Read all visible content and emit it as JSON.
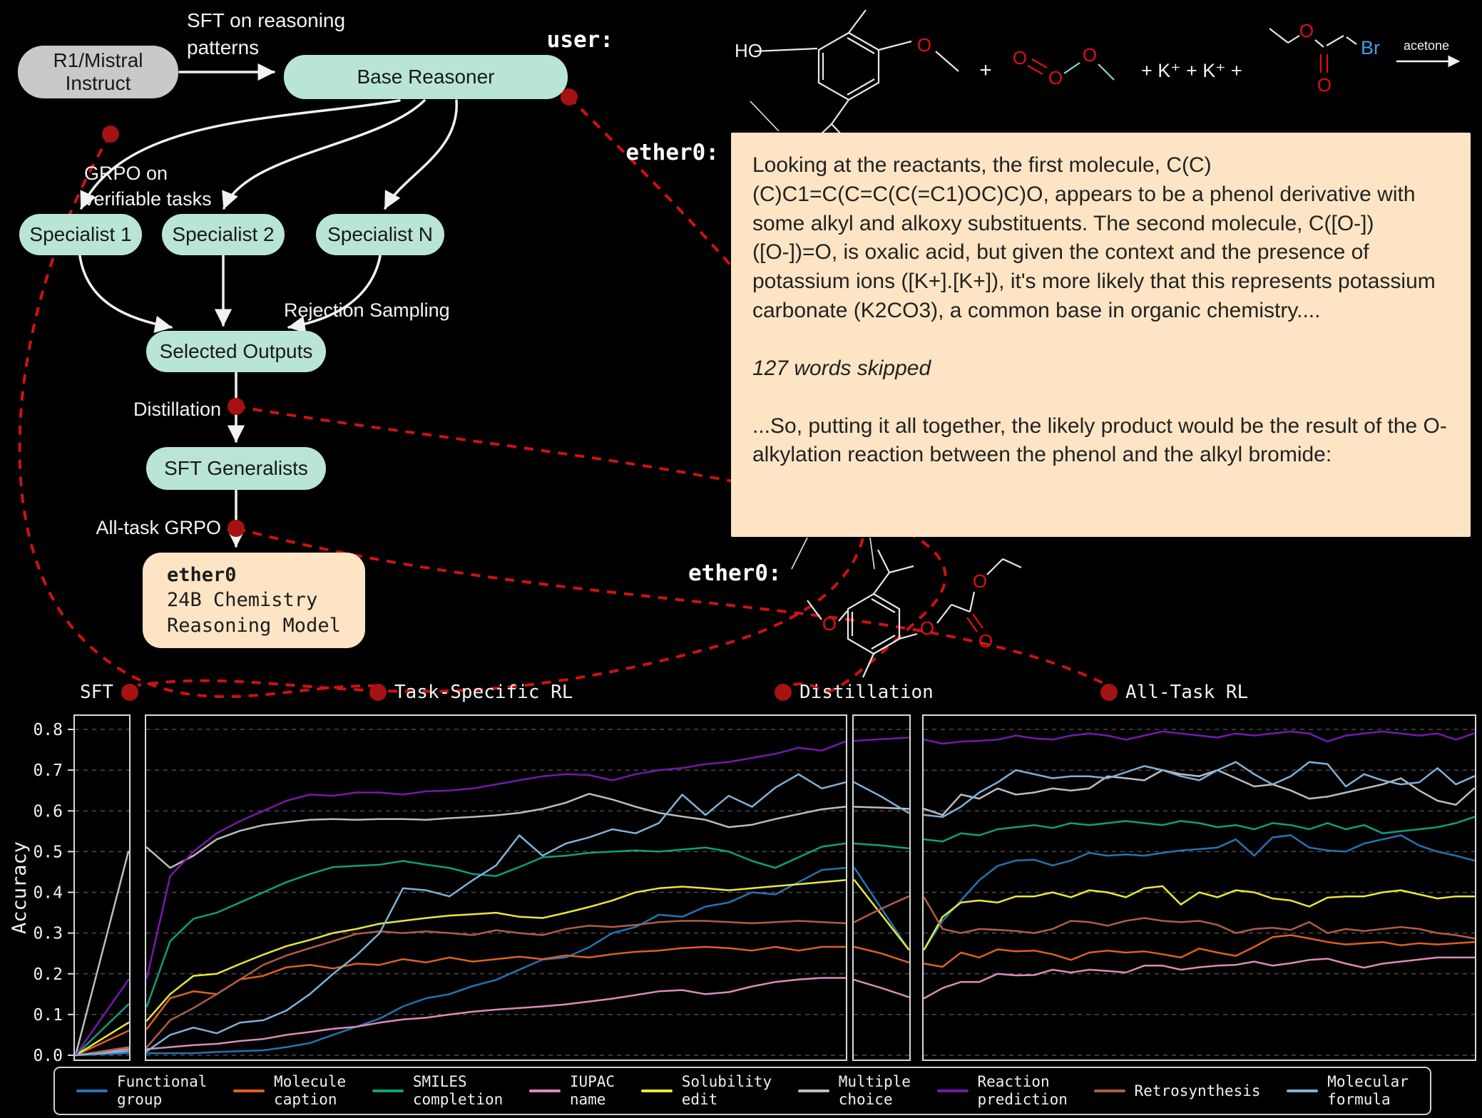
{
  "flow": {
    "sft_label_line1": "SFT on reasoning",
    "sft_label_line2": "patterns",
    "r1_box": "R1/Mistral Instruct",
    "base_box": "Base Reasoner",
    "grpo_label_line1": "GRPO on",
    "grpo_label_line2": "verifiable tasks",
    "specialist1": "Specialist 1",
    "specialist2": "Specialist 2",
    "specialistN": "Specialist N",
    "rejection_label": "Rejection Sampling",
    "selected_outputs": "Selected Outputs",
    "distillation_label": "Distillation",
    "sft_generalists": "SFT Generalists",
    "alltask_grpo_label": "All-task GRPO",
    "ether0_name": "ether0",
    "ether0_line2": "24B Chemistry",
    "ether0_line3": "Reasoning Model"
  },
  "chat": {
    "user_label": "user:",
    "ether0_label": "ether0:",
    "ether0_label2": "ether0:",
    "reaction": {
      "ho": "HO",
      "o": "O",
      "plus": "+",
      "k_ions": "+ K⁺ + K⁺ +",
      "br": "Br",
      "arrow_label": "acetone"
    },
    "response": {
      "para1": "Looking at the reactants, the first molecule, C(C)(C)C1=C(C=C(C(=C1)OC)C)O, appears to be a phenol derivative with some alkyl and alkoxy substituents. The second molecule, C([O-])([O-])=O, is oxalic acid, but given the context and the presence of potassium ions ([K+].[K+]), it's more likely that this represents potassium carbonate (K2CO3), a common base in organic chemistry....",
      "skipped": "127 words skipped",
      "para2": "...So, putting it all together, the likely product would be the result of the O-alkylation reaction between the phenol and the alkyl bromide:"
    }
  },
  "chart_data": {
    "type": "line",
    "title": "",
    "xlabel": "",
    "ylabel": "Accuracy",
    "ylim": [
      0.0,
      0.85
    ],
    "grid": "dashed horizontal",
    "legend_position": "bottom",
    "yticks": [
      "0.0",
      "0.1",
      "0.2",
      "0.3",
      "0.4",
      "0.5",
      "0.6",
      "0.7",
      "0.8"
    ],
    "panels": [
      {
        "key": "sft",
        "label": "SFT"
      },
      {
        "key": "task_rl",
        "label": "Task-Specific RL"
      },
      {
        "key": "distill",
        "label": "Distillation"
      },
      {
        "key": "all_rl",
        "label": "All-Task RL"
      }
    ],
    "series": [
      {
        "name": "Functional group",
        "legend": [
          "Functional",
          "group"
        ],
        "color": "#2474b5",
        "sft": [
          0,
          0.005
        ],
        "task_rl": [
          0.005,
          0.005,
          0.005,
          0.008,
          0.01,
          0.012,
          0.02,
          0.03,
          0.05,
          0.07,
          0.09,
          0.12,
          0.14,
          0.15,
          0.17,
          0.185,
          0.21,
          0.235,
          0.24,
          0.265,
          0.3,
          0.315,
          0.345,
          0.34,
          0.365,
          0.375,
          0.4,
          0.395,
          0.425,
          0.455,
          0.46
        ],
        "distill": [
          0.46,
          0.36,
          0.26
        ],
        "all_rl": [
          0.26,
          0.33,
          0.38,
          0.43,
          0.465,
          0.478,
          0.48,
          0.466,
          0.478,
          0.497,
          0.49,
          0.493,
          0.49,
          0.497,
          0.503,
          0.506,
          0.51,
          0.53,
          0.49,
          0.535,
          0.54,
          0.51,
          0.503,
          0.5,
          0.52,
          0.53,
          0.54,
          0.515,
          0.5,
          0.49,
          0.478
        ]
      },
      {
        "name": "Molecule caption",
        "legend": [
          "Molecule",
          "caption"
        ],
        "color": "#df6020",
        "sft": [
          0,
          0.06
        ],
        "task_rl": [
          0.065,
          0.14,
          0.157,
          0.15,
          0.186,
          0.195,
          0.216,
          0.222,
          0.213,
          0.225,
          0.222,
          0.236,
          0.228,
          0.24,
          0.23,
          0.236,
          0.242,
          0.236,
          0.245,
          0.24,
          0.248,
          0.254,
          0.257,
          0.263,
          0.266,
          0.263,
          0.257,
          0.266,
          0.257,
          0.266,
          0.266
        ],
        "distill": [
          0.266,
          0.25,
          0.228
        ],
        "all_rl": [
          0.225,
          0.217,
          0.252,
          0.24,
          0.26,
          0.255,
          0.257,
          0.248,
          0.234,
          0.252,
          0.257,
          0.252,
          0.255,
          0.248,
          0.24,
          0.262,
          0.252,
          0.244,
          0.266,
          0.29,
          0.295,
          0.287,
          0.278,
          0.272,
          0.275,
          0.278,
          0.27,
          0.275,
          0.272,
          0.275,
          0.278
        ]
      },
      {
        "name": "SMILES completion",
        "legend": [
          "SMILES",
          "completion"
        ],
        "color": "#0fa07a",
        "sft": [
          0,
          0.125
        ],
        "task_rl": [
          0.12,
          0.28,
          0.335,
          0.35,
          0.375,
          0.4,
          0.425,
          0.445,
          0.462,
          0.465,
          0.468,
          0.477,
          0.468,
          0.46,
          0.445,
          0.44,
          0.462,
          0.486,
          0.49,
          0.497,
          0.5,
          0.503,
          0.5,
          0.505,
          0.51,
          0.5,
          0.477,
          0.46,
          0.486,
          0.512,
          0.52
        ],
        "distill": [
          0.52,
          0.515,
          0.508
        ],
        "all_rl": [
          0.53,
          0.525,
          0.545,
          0.54,
          0.555,
          0.56,
          0.565,
          0.558,
          0.57,
          0.565,
          0.57,
          0.575,
          0.57,
          0.565,
          0.575,
          0.57,
          0.56,
          0.565,
          0.555,
          0.57,
          0.565,
          0.555,
          0.57,
          0.555,
          0.565,
          0.545,
          0.55,
          0.555,
          0.56,
          0.57,
          0.585
        ]
      },
      {
        "name": "IUPAC name",
        "legend": [
          "IUPAC",
          "name"
        ],
        "color": "#d98cba",
        "sft": [
          0,
          0.015
        ],
        "task_rl": [
          0.015,
          0.02,
          0.025,
          0.028,
          0.035,
          0.04,
          0.05,
          0.057,
          0.065,
          0.07,
          0.08,
          0.088,
          0.092,
          0.1,
          0.107,
          0.112,
          0.116,
          0.12,
          0.125,
          0.132,
          0.139,
          0.148,
          0.157,
          0.16,
          0.15,
          0.155,
          0.169,
          0.18,
          0.186,
          0.19,
          0.19
        ],
        "distill": [
          0.185,
          0.165,
          0.143
        ],
        "all_rl": [
          0.14,
          0.165,
          0.18,
          0.18,
          0.2,
          0.196,
          0.197,
          0.21,
          0.203,
          0.21,
          0.207,
          0.203,
          0.22,
          0.22,
          0.21,
          0.216,
          0.22,
          0.222,
          0.23,
          0.22,
          0.226,
          0.234,
          0.237,
          0.225,
          0.215,
          0.225,
          0.23,
          0.235,
          0.24,
          0.24,
          0.24
        ]
      },
      {
        "name": "Solubility edit",
        "legend": [
          "Solubility",
          "edit"
        ],
        "color": "#e8e83d",
        "sft": [
          0,
          0.08
        ],
        "task_rl": [
          0.085,
          0.15,
          0.195,
          0.2,
          0.224,
          0.247,
          0.268,
          0.283,
          0.3,
          0.31,
          0.323,
          0.33,
          0.337,
          0.343,
          0.346,
          0.35,
          0.34,
          0.337,
          0.35,
          0.364,
          0.38,
          0.4,
          0.41,
          0.414,
          0.41,
          0.405,
          0.41,
          0.415,
          0.42,
          0.425,
          0.43
        ],
        "distill": [
          0.43,
          0.345,
          0.26
        ],
        "all_rl": [
          0.26,
          0.34,
          0.375,
          0.38,
          0.375,
          0.39,
          0.39,
          0.4,
          0.388,
          0.405,
          0.4,
          0.388,
          0.41,
          0.415,
          0.37,
          0.4,
          0.388,
          0.405,
          0.4,
          0.385,
          0.38,
          0.365,
          0.387,
          0.39,
          0.39,
          0.4,
          0.405,
          0.395,
          0.385,
          0.39,
          0.39
        ]
      },
      {
        "name": "Multiple choice",
        "legend": [
          "Multiple",
          "choice"
        ],
        "color": "#bdbdbd",
        "sft": [
          0,
          0.5
        ],
        "task_rl": [
          0.51,
          0.46,
          0.49,
          0.53,
          0.551,
          0.565,
          0.572,
          0.578,
          0.58,
          0.578,
          0.58,
          0.58,
          0.578,
          0.582,
          0.585,
          0.589,
          0.595,
          0.605,
          0.62,
          0.642,
          0.628,
          0.61,
          0.595,
          0.586,
          0.578,
          0.56,
          0.566,
          0.58,
          0.592,
          0.604,
          0.61
        ],
        "distill": [
          0.61,
          0.608,
          0.605
        ],
        "all_rl": [
          0.605,
          0.59,
          0.64,
          0.63,
          0.655,
          0.64,
          0.645,
          0.655,
          0.65,
          0.655,
          0.685,
          0.68,
          0.675,
          0.7,
          0.69,
          0.685,
          0.7,
          0.68,
          0.66,
          0.665,
          0.65,
          0.63,
          0.635,
          0.645,
          0.655,
          0.665,
          0.68,
          0.65,
          0.625,
          0.615,
          0.655
        ]
      },
      {
        "name": "Reaction prediction",
        "legend": [
          "Reaction",
          "prediction"
        ],
        "color": "#7519ad",
        "sft": [
          0,
          0.185
        ],
        "task_rl": [
          0.19,
          0.44,
          0.5,
          0.545,
          0.575,
          0.6,
          0.625,
          0.64,
          0.637,
          0.645,
          0.645,
          0.64,
          0.648,
          0.65,
          0.655,
          0.665,
          0.675,
          0.685,
          0.69,
          0.688,
          0.675,
          0.69,
          0.7,
          0.705,
          0.715,
          0.72,
          0.73,
          0.74,
          0.755,
          0.748,
          0.77
        ],
        "distill": [
          0.772,
          0.776,
          0.78
        ],
        "all_rl": [
          0.775,
          0.765,
          0.77,
          0.772,
          0.775,
          0.785,
          0.778,
          0.775,
          0.785,
          0.79,
          0.785,
          0.775,
          0.785,
          0.795,
          0.79,
          0.785,
          0.78,
          0.79,
          0.785,
          0.79,
          0.795,
          0.79,
          0.77,
          0.785,
          0.79,
          0.795,
          0.79,
          0.785,
          0.79,
          0.775,
          0.79
        ]
      },
      {
        "name": "Retrosynthesis",
        "legend": [
          "Retrosynthesis"
        ],
        "color": "#b05c48",
        "sft": [
          0,
          0.02
        ],
        "task_rl": [
          0.02,
          0.086,
          0.116,
          0.15,
          0.186,
          0.222,
          0.245,
          0.263,
          0.28,
          0.298,
          0.304,
          0.3,
          0.304,
          0.3,
          0.295,
          0.307,
          0.3,
          0.295,
          0.31,
          0.318,
          0.315,
          0.32,
          0.327,
          0.33,
          0.33,
          0.327,
          0.324,
          0.327,
          0.33,
          0.327,
          0.324
        ],
        "distill": [
          0.327,
          0.36,
          0.39
        ],
        "all_rl": [
          0.387,
          0.31,
          0.3,
          0.31,
          0.308,
          0.305,
          0.3,
          0.31,
          0.33,
          0.327,
          0.318,
          0.33,
          0.337,
          0.33,
          0.327,
          0.33,
          0.32,
          0.3,
          0.31,
          0.313,
          0.308,
          0.327,
          0.3,
          0.31,
          0.305,
          0.31,
          0.315,
          0.31,
          0.3,
          0.295,
          0.287
        ]
      },
      {
        "name": "Molecular formula",
        "legend": [
          "Molecular",
          "formula"
        ],
        "color": "#7fb2d8",
        "sft": [
          0,
          0.01
        ],
        "task_rl": [
          0.01,
          0.05,
          0.068,
          0.054,
          0.08,
          0.086,
          0.11,
          0.15,
          0.2,
          0.245,
          0.3,
          0.41,
          0.405,
          0.39,
          0.43,
          0.466,
          0.54,
          0.49,
          0.52,
          0.535,
          0.555,
          0.545,
          0.57,
          0.64,
          0.59,
          0.637,
          0.61,
          0.657,
          0.69,
          0.655,
          0.67
        ],
        "distill": [
          0.67,
          0.635,
          0.595
        ],
        "all_rl": [
          0.59,
          0.585,
          0.61,
          0.645,
          0.67,
          0.7,
          0.69,
          0.68,
          0.685,
          0.685,
          0.68,
          0.695,
          0.71,
          0.7,
          0.685,
          0.675,
          0.7,
          0.72,
          0.69,
          0.665,
          0.685,
          0.72,
          0.715,
          0.66,
          0.69,
          0.675,
          0.665,
          0.67,
          0.705,
          0.665,
          0.685
        ]
      }
    ]
  }
}
